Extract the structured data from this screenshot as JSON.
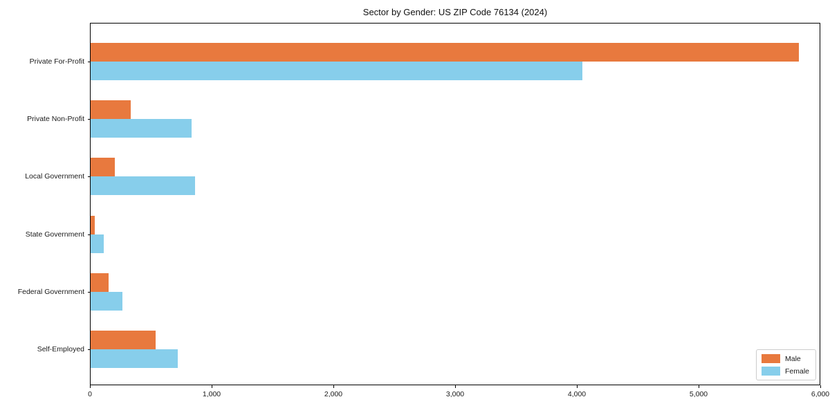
{
  "title": "Sector by Gender: US ZIP Code 76134 (2024)",
  "legend": {
    "position": "lower right",
    "items": [
      {
        "label": "Male",
        "color": "#e8793e"
      },
      {
        "label": "Female",
        "color": "#87ceeb"
      }
    ]
  },
  "chart_data": {
    "type": "bar",
    "orientation": "horizontal",
    "title": "Sector by Gender: US ZIP Code 76134 (2024)",
    "categories": [
      "Private For-Profit",
      "Private Non-Profit",
      "Local Government",
      "State Government",
      "Federal Government",
      "Self-Employed"
    ],
    "series": [
      {
        "name": "Male",
        "color": "#e8793e",
        "values": [
          5830,
          330,
          200,
          35,
          150,
          535
        ]
      },
      {
        "name": "Female",
        "color": "#87ceeb",
        "values": [
          4050,
          830,
          860,
          110,
          260,
          720
        ]
      }
    ],
    "xlabel": "",
    "ylabel": "",
    "xlim": [
      0,
      6000
    ],
    "xticks": [
      0,
      1000,
      2000,
      3000,
      4000,
      5000,
      6000
    ],
    "xtick_labels": [
      "0",
      "1,000",
      "2,000",
      "3,000",
      "4,000",
      "5,000",
      "6,000"
    ],
    "grid": false,
    "legend_position": "lower right",
    "bar_colors": {
      "Male": "#e8793e",
      "Female": "#87ceeb"
    }
  }
}
